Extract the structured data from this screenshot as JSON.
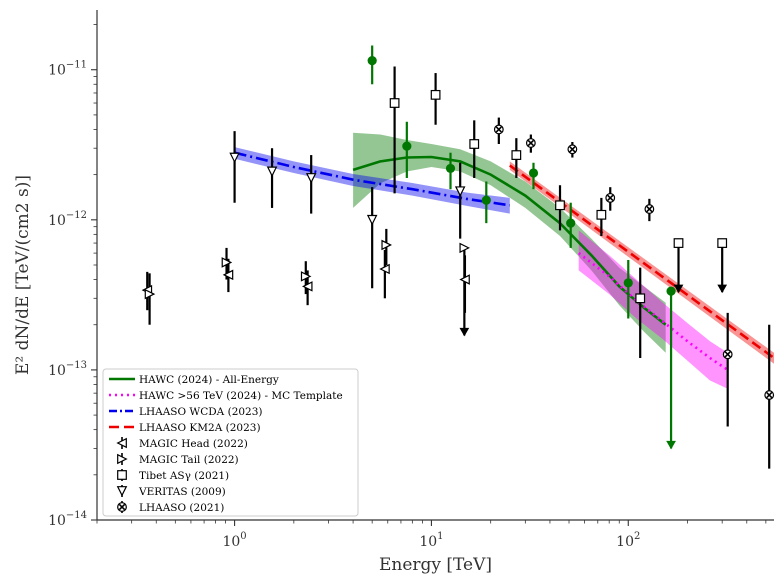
{
  "chart_data": {
    "type": "scatter",
    "title": "",
    "xlabel": "Energy [TeV]",
    "ylabel": "E² dN/dE [TeV/(cm2 s)]",
    "xscale": "log",
    "yscale": "log",
    "xlim": [
      0.2,
      550
    ],
    "ylim": [
      1e-14,
      2.5e-11
    ],
    "x_ticks": [
      {
        "value": 1,
        "base": "10",
        "exp": "0"
      },
      {
        "value": 10,
        "base": "10",
        "exp": "1"
      },
      {
        "value": 100,
        "base": "10",
        "exp": "2"
      }
    ],
    "y_ticks": [
      {
        "value": 1e-14,
        "base": "10",
        "exp": "−14"
      },
      {
        "value": 1e-13,
        "base": "10",
        "exp": "−13"
      },
      {
        "value": 1e-12,
        "base": "10",
        "exp": "−12"
      },
      {
        "value": 1e-11,
        "base": "10",
        "exp": "−11"
      }
    ],
    "grid": false,
    "legend_position": "lower-left",
    "colors": {
      "hawc": "#007700",
      "hawc56": "#ff00ff",
      "wcda": "#0000ee",
      "km2a": "#ee0000",
      "points": "#000000"
    },
    "lines": [
      {
        "name": "HAWC (2024) - All-Energy",
        "style": "solid",
        "color": "#007700",
        "x": [
          4.0,
          5.5,
          7.5,
          10,
          14,
          20,
          30,
          45,
          65,
          90,
          120,
          155
        ],
        "y": [
          2.15e-12,
          2.45e-12,
          2.6e-12,
          2.62e-12,
          2.45e-12,
          2e-12,
          1.45e-12,
          9.5e-13,
          5.8e-13,
          3.6e-13,
          2.6e-13,
          2e-13
        ],
        "band_low": [
          1.2e-12,
          1.75e-12,
          2.1e-12,
          2.25e-12,
          2.1e-12,
          1.7e-12,
          1.2e-12,
          7.8e-13,
          4.6e-13,
          2.7e-13,
          1.8e-13,
          1.3e-13
        ],
        "band_high": [
          3.8e-12,
          3.7e-12,
          3.4e-12,
          3.2e-12,
          2.95e-12,
          2.45e-12,
          1.8e-12,
          1.2e-12,
          7.5e-13,
          4.8e-13,
          3.6e-13,
          2.8e-13
        ]
      },
      {
        "name": "HAWC >56 TeV (2024) - MC Template",
        "style": "dotted",
        "color": "#ff00ff",
        "x": [
          56,
          80,
          110,
          150,
          200,
          260,
          320
        ],
        "y": [
          6e-13,
          4.2e-13,
          2.9e-13,
          2.1e-13,
          1.55e-13,
          1.2e-13,
          1e-13
        ],
        "band_low": [
          4.6e-13,
          3.2e-13,
          2.2e-13,
          1.6e-13,
          1.15e-13,
          8.5e-14,
          7.5e-14
        ],
        "band_high": [
          8.5e-13,
          5.8e-13,
          4e-13,
          2.8e-13,
          2.05e-13,
          1.55e-13,
          1.3e-13
        ]
      },
      {
        "name": "LHAASO WCDA (2023)",
        "style": "dashdot",
        "color": "#0000ee",
        "x": [
          1.0,
          2.0,
          4.0,
          8.0,
          15.0,
          25.0
        ],
        "y": [
          2.8e-12,
          2.25e-12,
          1.85e-12,
          1.6e-12,
          1.38e-12,
          1.25e-12
        ],
        "band_low": [
          2.55e-12,
          2.05e-12,
          1.68e-12,
          1.45e-12,
          1.24e-12,
          1.1e-12
        ],
        "band_high": [
          3.05e-12,
          2.45e-12,
          2.02e-12,
          1.76e-12,
          1.52e-12,
          1.4e-12
        ]
      },
      {
        "name": "LHAASO KM2A (2023)",
        "style": "dashed",
        "color": "#ee0000",
        "x": [
          25,
          550
        ],
        "y": [
          2.3e-12,
          1.2e-13
        ],
        "band_low": [
          2.15e-12,
          1.1e-13
        ],
        "band_high": [
          2.45e-12,
          1.3e-13
        ]
      }
    ],
    "hawc_points": [
      {
        "x": 5.0,
        "y": 1.15e-11,
        "lo": 8e-12,
        "hi": 1.45e-11
      },
      {
        "x": 7.5,
        "y": 3.1e-12,
        "lo": 1.9e-12,
        "hi": 4.5e-12
      },
      {
        "x": 12.5,
        "y": 2.2e-12,
        "lo": 1.6e-12,
        "hi": 2.8e-12
      },
      {
        "x": 19.0,
        "y": 1.35e-12,
        "lo": 9.5e-13,
        "hi": 1.8e-12
      },
      {
        "x": 33.0,
        "y": 2.05e-12,
        "lo": 1.6e-12,
        "hi": 2.4e-12
      },
      {
        "x": 51.0,
        "y": 9.5e-13,
        "lo": 6.5e-13,
        "hi": 1.3e-12
      },
      {
        "x": 100.0,
        "y": 3.8e-13,
        "lo": 2.2e-13,
        "hi": 5.4e-13
      },
      {
        "x": 165.0,
        "y": 3.35e-13,
        "lo": 3e-14,
        "hi": 3.35e-13,
        "arrow": true
      }
    ],
    "scatter_series": [
      {
        "name": "MAGIC Head (2022)",
        "marker": "tri-left",
        "points": [
          {
            "x": 0.36,
            "y": 3.4e-13,
            "lo": 2.5e-13,
            "hi": 4.5e-13
          },
          {
            "x": 0.93,
            "y": 4.3e-13,
            "lo": 3.3e-13,
            "hi": 5.5e-13
          },
          {
            "x": 2.35,
            "y": 3.6e-13,
            "lo": 2.7e-13,
            "hi": 4.6e-13
          },
          {
            "x": 5.8,
            "y": 4.7e-13,
            "lo": 3e-13,
            "hi": 6.3e-13
          },
          {
            "x": 14.8,
            "y": 4e-13,
            "lo": 2.4e-13,
            "hi": 5.8e-13
          }
        ]
      },
      {
        "name": "MAGIC Tail (2022)",
        "marker": "tri-right",
        "points": [
          {
            "x": 0.37,
            "y": 3.2e-13,
            "lo": 2e-13,
            "hi": 4.4e-13
          },
          {
            "x": 0.91,
            "y": 5.2e-13,
            "lo": 4e-13,
            "hi": 6.5e-13
          },
          {
            "x": 2.3,
            "y": 4.2e-13,
            "lo": 3.2e-13,
            "hi": 5.3e-13
          },
          {
            "x": 5.9,
            "y": 6.8e-13,
            "lo": 5e-13,
            "hi": 8.7e-13
          },
          {
            "x": 14.7,
            "y": 6.5e-13,
            "lo": 1.7e-13,
            "hi": 6.5e-13,
            "arrow": true
          }
        ]
      },
      {
        "name": "Tibet ASγ (2021)",
        "marker": "square",
        "points": [
          {
            "x": 6.5,
            "y": 6e-12,
            "lo": 1.5e-12,
            "hi": 1.05e-11
          },
          {
            "x": 10.5,
            "y": 6.8e-12,
            "lo": 4.3e-12,
            "hi": 9.5e-12
          },
          {
            "x": 16.5,
            "y": 3.2e-12,
            "lo": 1.9e-12,
            "hi": 4.6e-12
          },
          {
            "x": 27.0,
            "y": 2.7e-12,
            "lo": 1.9e-12,
            "hi": 3.5e-12
          },
          {
            "x": 45.0,
            "y": 1.25e-12,
            "lo": 8.5e-13,
            "hi": 1.7e-12
          },
          {
            "x": 73.0,
            "y": 1.08e-12,
            "lo": 7.8e-13,
            "hi": 1.4e-12
          },
          {
            "x": 115.0,
            "y": 3e-13,
            "lo": 1.2e-13,
            "hi": 4.8e-13
          },
          {
            "x": 180.0,
            "y": 7e-13,
            "lo": 3.3e-13,
            "hi": 7e-13,
            "arrow": true
          },
          {
            "x": 300.0,
            "y": 7e-13,
            "lo": 3.3e-13,
            "hi": 7e-13,
            "arrow": true
          }
        ]
      },
      {
        "name": "VERITAS (2009)",
        "marker": "tri-down",
        "points": [
          {
            "x": 1.0,
            "y": 2.6e-12,
            "lo": 1.3e-12,
            "hi": 3.9e-12
          },
          {
            "x": 1.55,
            "y": 2.1e-12,
            "lo": 1.2e-12,
            "hi": 3e-12
          },
          {
            "x": 2.45,
            "y": 1.9e-12,
            "lo": 1.1e-12,
            "hi": 2.7e-12
          },
          {
            "x": 5.0,
            "y": 1e-12,
            "lo": 3.5e-13,
            "hi": 1.65e-12
          },
          {
            "x": 14.0,
            "y": 1.55e-12,
            "lo": 7.5e-13,
            "hi": 2.4e-12
          }
        ]
      },
      {
        "name": "LHAASO (2021)",
        "marker": "x-circle",
        "points": [
          {
            "x": 22.0,
            "y": 4e-12,
            "lo": 3.2e-12,
            "hi": 4.8e-12
          },
          {
            "x": 32.0,
            "y": 3.25e-12,
            "lo": 2.8e-12,
            "hi": 3.7e-12
          },
          {
            "x": 52.0,
            "y": 2.95e-12,
            "lo": 2.6e-12,
            "hi": 3.3e-12
          },
          {
            "x": 81.0,
            "y": 1.4e-12,
            "lo": 1.15e-12,
            "hi": 1.65e-12
          },
          {
            "x": 128.0,
            "y": 1.18e-12,
            "lo": 9.8e-13,
            "hi": 1.38e-12
          },
          {
            "x": 320.0,
            "y": 1.27e-13,
            "lo": 4.2e-14,
            "hi": 2.4e-13
          },
          {
            "x": 520.0,
            "y": 6.8e-14,
            "lo": 2.2e-14,
            "hi": 2e-13
          }
        ]
      }
    ],
    "legend": [
      {
        "label": "HAWC (2024) - All-Energy",
        "kind": "line",
        "style": "solid",
        "color": "#007700"
      },
      {
        "label": "HAWC >56 TeV (2024) - MC Template",
        "kind": "line",
        "style": "dotted",
        "color": "#ff00ff"
      },
      {
        "label": "LHAASO WCDA (2023)",
        "kind": "line",
        "style": "dashdot",
        "color": "#0000ee"
      },
      {
        "label": "LHAASO KM2A (2023)",
        "kind": "line",
        "style": "dashed",
        "color": "#ee0000"
      },
      {
        "label": "MAGIC Head (2022)",
        "kind": "marker",
        "marker": "tri-left"
      },
      {
        "label": "MAGIC Tail (2022)",
        "kind": "marker",
        "marker": "tri-right"
      },
      {
        "label": "Tibet ASγ (2021)",
        "kind": "marker",
        "marker": "square"
      },
      {
        "label": "VERITAS (2009)",
        "kind": "marker",
        "marker": "tri-down"
      },
      {
        "label": "LHAASO (2021)",
        "kind": "marker",
        "marker": "x-circle"
      }
    ]
  }
}
